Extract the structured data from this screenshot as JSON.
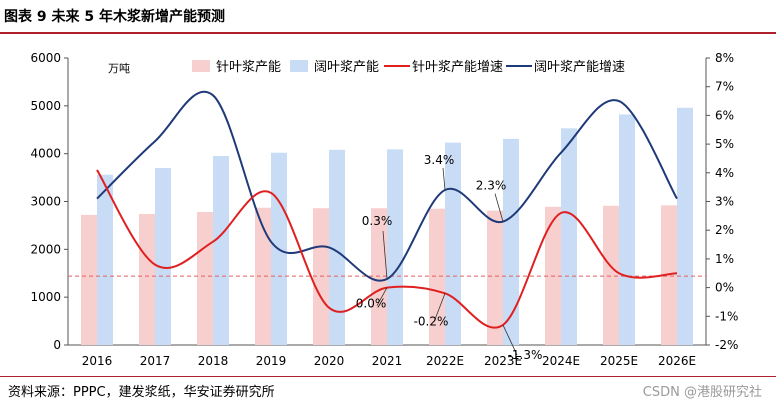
{
  "figure_title": "图表 9  未来 5 年木浆新增产能预测",
  "source": "资料来源：PPPC，建发浆纸，华安证券研究所",
  "watermark": "CSDN @港股研究社",
  "colors": {
    "hardwood_bar": "#f8cfcf",
    "softwood_bar": "#c9dcf5",
    "hardwood_line": "#e02020",
    "softwood_line": "#1f3a78",
    "ref_line": "#e06060",
    "rule": "#b0202a"
  },
  "chart_data": {
    "type": "bar",
    "categories": [
      "2016",
      "2017",
      "2018",
      "2019",
      "2020",
      "2021",
      "2022E",
      "2023E",
      "2024E",
      "2025E",
      "2026E"
    ],
    "unit_label": "万吨",
    "y_left": {
      "min": 0,
      "max": 6000,
      "ticks": [
        0,
        1000,
        2000,
        3000,
        4000,
        5000,
        6000
      ]
    },
    "y_right": {
      "min": -2,
      "max": 8,
      "ticks": [
        "-2%",
        "-1%",
        "0%",
        "1%",
        "2%",
        "3%",
        "4%",
        "5%",
        "6%",
        "7%",
        "8%"
      ]
    },
    "series": [
      {
        "name": "针叶浆产能",
        "kind": "bar",
        "axis": "left",
        "values": [
          2720,
          2740,
          2780,
          2870,
          2860,
          2860,
          2850,
          2810,
          2890,
          2910,
          2920
        ]
      },
      {
        "name": "阔叶浆产能",
        "kind": "bar",
        "axis": "left",
        "values": [
          3560,
          3700,
          3950,
          4020,
          4080,
          4090,
          4230,
          4310,
          4530,
          4820,
          4960
        ]
      },
      {
        "name": "针叶浆产能增速",
        "kind": "line",
        "axis": "right",
        "values": [
          4.1,
          0.8,
          1.6,
          3.3,
          -0.7,
          0.0,
          -0.2,
          -1.3,
          2.6,
          0.5,
          0.5
        ]
      },
      {
        "name": "阔叶浆产能增速",
        "kind": "line",
        "axis": "right",
        "values": [
          3.1,
          5.1,
          6.7,
          1.6,
          1.4,
          0.3,
          3.4,
          2.3,
          4.7,
          6.5,
          3.1
        ]
      }
    ],
    "reference_line": 0.4,
    "annotations": [
      {
        "text": "0.3%",
        "category": "2021",
        "value": 0.3,
        "series": "阔叶浆产能增速"
      },
      {
        "text": "0.0%",
        "category": "2021",
        "value": 0.0,
        "series": "针叶浆产能增速"
      },
      {
        "text": "3.4%",
        "category": "2022E",
        "value": 3.4,
        "series": "阔叶浆产能增速"
      },
      {
        "text": "-0.2%",
        "category": "2022E",
        "value": -0.2,
        "series": "针叶浆产能增速"
      },
      {
        "text": "2.3%",
        "category": "2023E",
        "value": 2.3,
        "series": "阔叶浆产能增速"
      },
      {
        "text": "-1.3%",
        "category": "2023E",
        "value": -1.3,
        "series": "针叶浆产能增速"
      }
    ]
  }
}
